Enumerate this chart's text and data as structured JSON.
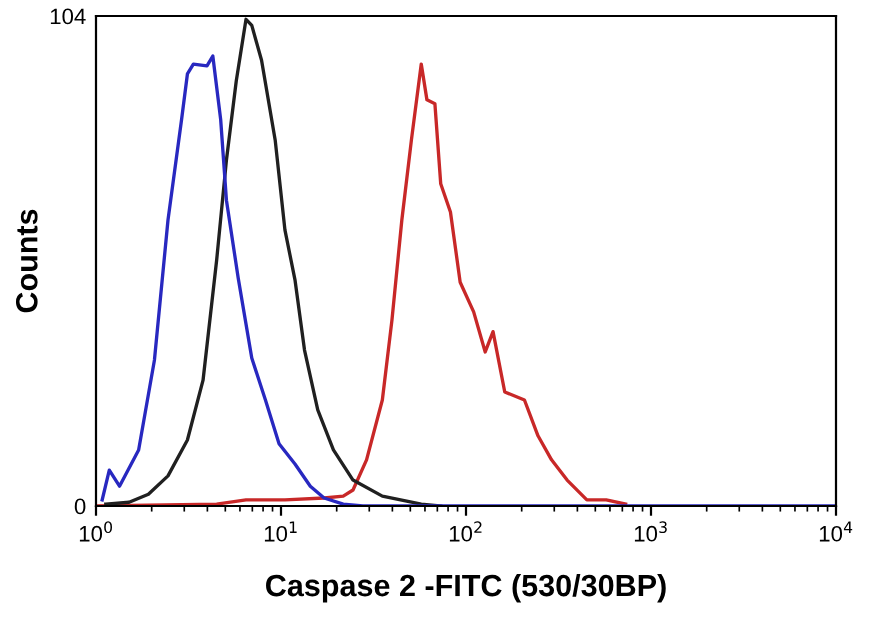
{
  "chart_data": {
    "type": "line",
    "xlabel": "Caspase 2 -FITC (530/30BP)",
    "ylabel": "Counts",
    "log": "x",
    "xlim": [
      1,
      10000
    ],
    "ylim": [
      0,
      104
    ],
    "xticks": [
      {
        "value": 1,
        "label": "10$^{0}$"
      },
      {
        "value": 10,
        "label": "10$^{1}$"
      },
      {
        "value": 100,
        "label": "10$^{2}$"
      },
      {
        "value": 1000,
        "label": "10$^{3}$"
      },
      {
        "value": 10000,
        "label": "10$^{4}$"
      }
    ],
    "yticks": [
      0,
      104
    ],
    "grid": false,
    "series": [
      {
        "color": "#c82828",
        "x": [
          1,
          4.49,
          6.47,
          10.5,
          17.1,
          21.7,
          24.5,
          29.0,
          35.3,
          39.8,
          45.0,
          50.7,
          57.3,
          61.5,
          67.9,
          73,
          82.4,
          93.0,
          110,
          127,
          140,
          162,
          207,
          245,
          290,
          352,
          450,
          573,
          729
        ],
        "values": [
          0,
          0.4,
          1.3,
          1.3,
          1.7,
          2.1,
          3.4,
          9.8,
          22.5,
          39.5,
          60.7,
          77.7,
          93.8,
          86.2,
          85.4,
          68.4,
          62.4,
          47.5,
          41.2,
          32.7,
          37,
          24.2,
          22.5,
          14.9,
          9.8,
          5.5,
          1.3,
          1.3,
          0.4
        ]
      },
      {
        "color": "#202020",
        "x": [
          1.13,
          1.51,
          1.92,
          2.45,
          3.12,
          3.79,
          4.49,
          5.07,
          5.73,
          6.47,
          6.95,
          7.85,
          9.3,
          10.5,
          11.9,
          13.4,
          15.8,
          19.2,
          24.5,
          35.3,
          57.3,
          73
        ],
        "values": [
          0.4,
          0.8,
          2.5,
          6.4,
          14.0,
          26.7,
          52.2,
          73.4,
          90.2,
          103.3,
          102,
          94.6,
          77.7,
          58.6,
          48,
          33.1,
          20.4,
          11.9,
          5.5,
          2.1,
          0.4,
          0
        ]
      },
      {
        "color": "#2828c0",
        "x": [
          1.08,
          1.18,
          1.34,
          1.7,
          2.07,
          2.45,
          2.9,
          3.12,
          3.36,
          3.98,
          4.28,
          4.72,
          5.07,
          5.87,
          6.95,
          8.24,
          9.76,
          11.9,
          14.4,
          17.1,
          21.7,
          27.7,
          10000
        ],
        "values": [
          1.3,
          7.6,
          4.2,
          11.9,
          31,
          60.7,
          82,
          91.7,
          93.8,
          93.4,
          95.5,
          82,
          64.9,
          48.4,
          31.4,
          22.5,
          13.2,
          8.9,
          4.2,
          1.7,
          0.4,
          0,
          0
        ]
      }
    ]
  }
}
